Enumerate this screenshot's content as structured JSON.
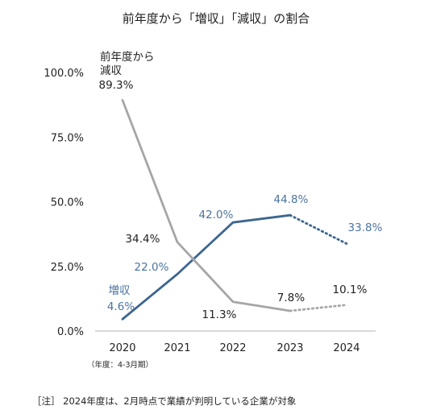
{
  "chart_data": {
    "type": "line",
    "title": "前年度から「増収」「減収」の割合",
    "x": [
      "2020",
      "2021",
      "2022",
      "2023",
      "2024"
    ],
    "x_note": "（年度：4-3月期）",
    "ylim": [
      0,
      100
    ],
    "y_ticks": [
      "0.0%",
      "25.0%",
      "50.0%",
      "75.0%",
      "100.0%"
    ],
    "grid": false,
    "series": [
      {
        "name": "増収",
        "color": "#3d6690",
        "values": [
          4.6,
          22.0,
          42.0,
          44.8,
          33.8
        ],
        "labels": [
          "4.6%",
          "22.0%",
          "42.0%",
          "44.8%",
          "33.8%"
        ],
        "dotted_last_segment": true
      },
      {
        "name": "前年度から減収",
        "color": "#a6a6a6",
        "values": [
          89.3,
          34.4,
          11.3,
          7.8,
          10.1
        ],
        "labels": [
          "89.3%",
          "34.4%",
          "11.3%",
          "7.8%",
          "10.1%"
        ],
        "dotted_last_segment": true
      }
    ],
    "series_labels": {
      "increase": "増収",
      "decrease_line1": "前年度から",
      "decrease_line2": "減収"
    },
    "footnote": "［注］ 2024年度は、2月時点で業績が判明している企業が対象"
  }
}
